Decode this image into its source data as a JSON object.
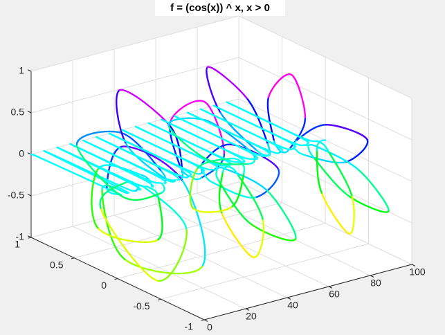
{
  "chart_data": {
    "type": "line3d",
    "title": "f = (cos(x)) ^ x,  x > 0",
    "x": [
      0,
      0.5,
      1,
      1.4,
      1.571,
      2,
      2.5,
      2.8,
      3.142,
      3.5,
      3.9,
      4.4,
      5.485,
      6.283,
      7.081,
      8.448,
      8.774,
      9.099,
      9.425,
      9.75,
      10.076,
      10.402,
      12.002,
      12.566,
      13.13,
      14.951,
      15.203,
      15.456,
      15.708,
      15.96,
      16.213,
      16.466,
      18.389,
      18.85,
      19.311,
      21.352,
      21.565,
      21.778,
      21.991,
      22.204,
      22.417,
      22.63,
      24.734,
      25.133,
      25.532,
      27.71,
      27.898,
      28.086,
      28.274,
      28.462,
      28.65,
      28.838,
      31.059,
      31.416,
      31.773,
      34.048,
      34.218,
      34.388,
      34.558,
      34.728,
      34.898,
      35.068,
      37.373,
      37.699,
      38.025,
      40.372,
      40.528,
      40.685,
      40.841,
      40.998,
      41.154,
      41.311,
      43.68,
      43.982,
      44.284,
      46.687,
      46.833,
      46.978,
      47.124,
      47.27,
      47.415,
      47.561,
      49.983,
      50.265,
      50.547,
      52.996,
      53.133,
      53.27,
      53.407,
      53.544,
      53.681,
      53.818,
      56.283,
      56.549,
      56.815,
      59.302,
      59.431,
      59.561,
      59.69,
      59.82,
      59.949,
      60.079,
      62.58,
      62.832,
      63.084,
      65.604,
      65.727,
      65.85,
      65.973,
      66.096,
      66.219,
      66.342,
      68.874,
      69.115,
      69.356,
      71.904,
      72.022,
      72.139,
      72.257,
      72.375,
      72.492,
      72.61,
      75.168,
      75.398,
      75.628,
      78.201,
      78.314,
      78.427,
      78.54,
      78.653,
      78.766,
      78.879,
      81.46,
      81.681,
      81.902,
      84.498,
      84.606,
      84.715,
      84.823,
      84.932,
      85.04,
      85.149,
      87.752,
      87.965,
      88.178,
      90.791,
      90.896,
      91.001,
      91.106,
      91.211,
      91.316,
      91.421,
      94.042,
      94.248,
      94.454,
      97.085,
      97.186,
      97.288,
      97.389,
      97.491,
      97.592,
      97.694,
      100
    ],
    "y": [
      1,
      0.937,
      0.54,
      0.084,
      0,
      0.173,
      0,
      -0.684,
      -0.901,
      0,
      0.273,
      0,
      0.135,
      1,
      0.135,
      0,
      -0.102,
      -0.578,
      -0.234,
      0.43,
      0.131,
      0,
      0.135,
      1,
      0.135,
      0,
      -0.108,
      -0.084,
      0.608,
      0.602,
      0.106,
      0,
      0.135,
      1,
      0.135,
      0,
      0.027,
      0.466,
      1,
      0.486,
      0.035,
      0,
      0.135,
      1,
      0.135,
      0,
      0.128,
      0.585,
      0.651,
      0.071,
      -0.061,
      0,
      0.135,
      1,
      0.135,
      0,
      0.105,
      0.211,
      -0.179,
      -0.398,
      -0.128,
      0,
      0.135,
      1,
      0.135,
      0,
      -0.012,
      -0.332,
      -0.877,
      -0.607,
      -0.12,
      0,
      0.135,
      1,
      0.135,
      0,
      -0.117,
      -0.606,
      -0.925,
      -0.402,
      -0.036,
      0,
      0.135,
      1,
      0.135,
      0,
      -0.123,
      -0.401,
      -0.289,
      0.083,
      0.073,
      0,
      0.135,
      1,
      0.135,
      0,
      -0.029,
      0.116,
      0.563,
      0.512,
      0.133,
      0,
      0.135,
      1,
      0.135,
      0,
      0.088,
      0.541,
      0.996,
      0.579,
      0.104,
      0,
      0.135,
      1,
      0.135,
      0,
      0.135,
      0.55,
      0.692,
      0.234,
      0.004,
      0,
      0.135,
      1,
      0.135,
      0,
      0.075,
      0.138,
      -0.124,
      -0.28,
      -0.1,
      0,
      0.135,
      1,
      0.135,
      0,
      -0.044,
      -0.378,
      -0.849,
      -0.593,
      -0.134,
      0,
      0.135,
      1,
      0.135,
      0,
      -0.128,
      -0.607,
      -0.945,
      -0.479,
      -0.074,
      0,
      0.135,
      1,
      0.135,
      0,
      -0.113,
      -0.375,
      -0.342,
      -0.018,
      0.038,
      0,
      0
    ],
    "z": [
      0,
      0,
      0,
      0,
      0,
      0,
      0.574,
      0.497,
      -0.43,
      -0.793,
      -0.089,
      0,
      0,
      0,
      0,
      0,
      0.088,
      -0.186,
      -0.972,
      -0.429,
      0.032,
      0,
      0,
      0,
      0,
      0,
      -0.08,
      -0.601,
      -0.794,
      -0.075,
      0.084,
      0,
      0,
      0,
      0,
      0,
      -0.132,
      -0.39,
      -0.028,
      0.364,
      0.13,
      0,
      0,
      0,
      0,
      0,
      -0.042,
      0.163,
      0.759,
      0.603,
      0.12,
      0,
      0,
      0,
      0,
      0,
      0.085,
      0.569,
      0.984,
      0.459,
      0.043,
      0,
      0,
      0,
      0,
      0,
      0.134,
      0.508,
      0.48,
      0.005,
      -0.063,
      0,
      0,
      0,
      0,
      0,
      0.068,
      0.041,
      -0.379,
      -0.455,
      -0.13,
      0,
      0,
      0,
      0,
      0,
      -0.055,
      -0.455,
      -0.957,
      -0.601,
      -0.114,
      0,
      0,
      0,
      0,
      0,
      -0.132,
      -0.596,
      -0.827,
      -0.325,
      -0.021,
      0,
      0,
      0,
      0,
      0,
      -0.102,
      -0.276,
      -0.084,
      0.181,
      0.086,
      0,
      0,
      0,
      0,
      0,
      0.009,
      0.257,
      0.722,
      0.56,
      0.135,
      0,
      0,
      0,
      0,
      0,
      0.113,
      0.591,
      0.992,
      0.539,
      0.091,
      0,
      0,
      0,
      0,
      0,
      0.128,
      0.475,
      0.529,
      0.13,
      -0.017,
      0,
      0,
      0,
      0,
      0,
      0.043,
      -0.002,
      -0.327,
      -0.373,
      -0.113,
      0,
      0,
      0,
      0,
      0,
      -0.075,
      -0.477,
      -0.94,
      -0.607,
      -0.129,
      0,
      0
    ],
    "color_by": "z",
    "colormap": "hsv",
    "xlim": [
      0,
      100
    ],
    "ylim": [
      -1,
      1
    ],
    "zlim": [
      -1,
      1
    ],
    "xticks": [
      0,
      20,
      40,
      60,
      80,
      100
    ],
    "yticks": [
      -1,
      -0.5,
      0,
      0.5,
      1
    ],
    "zticks": [
      -1,
      -0.5,
      0,
      0.5,
      1
    ],
    "grid": true
  }
}
